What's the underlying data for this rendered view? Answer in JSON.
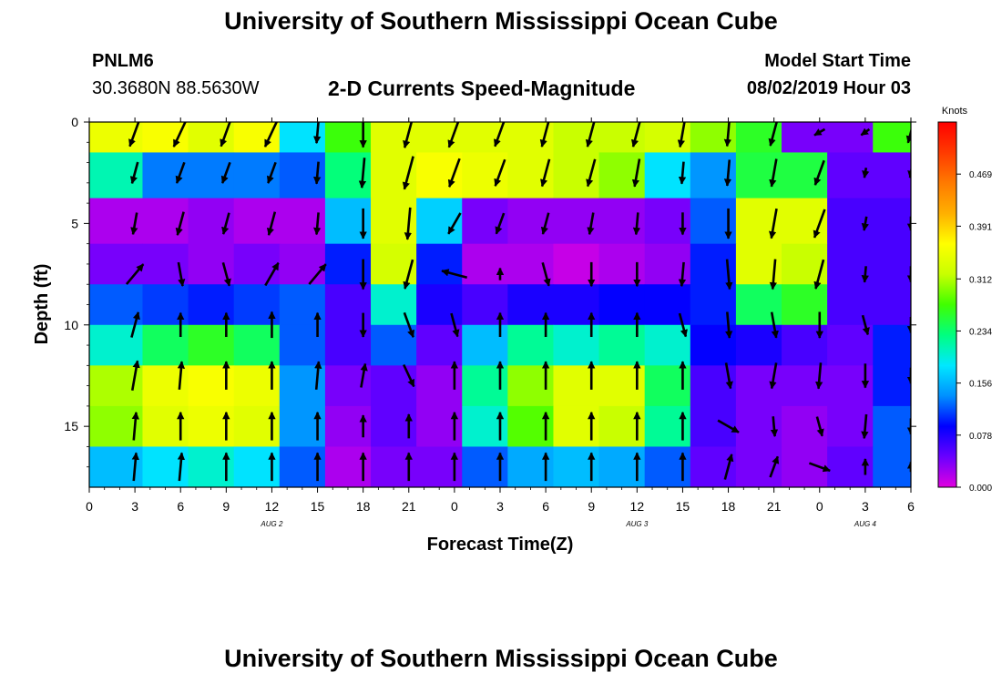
{
  "header": {
    "title": "University of Southern Mississippi Ocean Cube",
    "station": "PNLM6",
    "coordinates": "30.3680N 88.5630W",
    "subtitle": "2-D Currents Speed-Magnitude",
    "model_start_label": "Model Start Time",
    "model_start_value": "08/02/2019 Hour 03"
  },
  "footer": {
    "title": "University of Southern Mississippi Ocean Cube"
  },
  "chart_data": {
    "type": "heatmap",
    "xlabel": "Forecast Time(Z)",
    "ylabel": "Depth (ft)",
    "x_range_hours": [
      0,
      54
    ],
    "y_range_ft": [
      0,
      18
    ],
    "y_inverted": true,
    "x_ticks": [
      {
        "h": 0,
        "label": "0"
      },
      {
        "h": 3,
        "label": "3"
      },
      {
        "h": 6,
        "label": "6"
      },
      {
        "h": 9,
        "label": "9"
      },
      {
        "h": 12,
        "label": "12"
      },
      {
        "h": 15,
        "label": "15"
      },
      {
        "h": 18,
        "label": "18"
      },
      {
        "h": 21,
        "label": "21"
      },
      {
        "h": 24,
        "label": "0"
      },
      {
        "h": 27,
        "label": "3"
      },
      {
        "h": 30,
        "label": "6"
      },
      {
        "h": 33,
        "label": "9"
      },
      {
        "h": 36,
        "label": "12"
      },
      {
        "h": 39,
        "label": "15"
      },
      {
        "h": 42,
        "label": "18"
      },
      {
        "h": 45,
        "label": "21"
      },
      {
        "h": 48,
        "label": "0"
      },
      {
        "h": 51,
        "label": "3"
      },
      {
        "h": 54,
        "label": "6"
      }
    ],
    "y_ticks": [
      {
        "v": 0,
        "label": "0"
      },
      {
        "v": 5,
        "label": "5"
      },
      {
        "v": 10,
        "label": "10"
      },
      {
        "v": 15,
        "label": "15"
      }
    ],
    "date_labels": [
      {
        "h": 12,
        "label": "AUG 2"
      },
      {
        "h": 36,
        "label": "AUG 3"
      },
      {
        "h": 51,
        "label": "AUG 4"
      }
    ],
    "colorbar": {
      "unit": "Knots",
      "min": 0.0,
      "max": 0.547,
      "ticks": [
        {
          "v": 0.0,
          "label": "0.000"
        },
        {
          "v": 0.078,
          "label": "0.078"
        },
        {
          "v": 0.156,
          "label": "0.156"
        },
        {
          "v": 0.234,
          "label": "0.234"
        },
        {
          "v": 0.312,
          "label": "0.312"
        },
        {
          "v": 0.391,
          "label": "0.391"
        },
        {
          "v": 0.469,
          "label": "0.469"
        }
      ],
      "colors": [
        "#e000e0",
        "#6a00ff",
        "#0000ff",
        "#0090ff",
        "#00e8ff",
        "#00ff80",
        "#40ff00",
        "#c8ff00",
        "#ffff00",
        "#ffb000",
        "#ff7a00",
        "#ff3a00",
        "#ff0000"
      ]
    },
    "time_hours": [
      2,
      5,
      8,
      11,
      14,
      17,
      20,
      23,
      26,
      29,
      32,
      35,
      38,
      41,
      44,
      47,
      50,
      53
    ],
    "depth_ft": [
      0.5,
      2.5,
      5,
      7,
      9,
      11,
      13,
      15,
      17
    ],
    "speed_knots": [
      [
        0.35,
        0.36,
        0.34,
        0.36,
        0.18,
        0.27,
        0.34,
        0.34,
        0.34,
        0.34,
        0.32,
        0.32,
        0.33,
        0.3,
        0.26,
        0.04,
        0.04,
        0.27
      ],
      [
        0.21,
        0.13,
        0.13,
        0.13,
        0.12,
        0.23,
        0.34,
        0.36,
        0.35,
        0.34,
        0.32,
        0.3,
        0.18,
        0.14,
        0.25,
        0.25,
        0.05,
        0.05
      ],
      [
        0.02,
        0.02,
        0.03,
        0.02,
        0.02,
        0.16,
        0.34,
        0.17,
        0.04,
        0.03,
        0.03,
        0.03,
        0.04,
        0.12,
        0.34,
        0.34,
        0.06,
        0.06
      ],
      [
        0.04,
        0.04,
        0.03,
        0.04,
        0.03,
        0.1,
        0.33,
        0.1,
        0.02,
        0.02,
        0.01,
        0.02,
        0.03,
        0.1,
        0.34,
        0.32,
        0.06,
        0.06
      ],
      [
        0.12,
        0.11,
        0.1,
        0.11,
        0.12,
        0.06,
        0.2,
        0.08,
        0.06,
        0.08,
        0.08,
        0.09,
        0.09,
        0.1,
        0.24,
        0.26,
        0.06,
        0.06
      ],
      [
        0.2,
        0.24,
        0.26,
        0.24,
        0.12,
        0.06,
        0.12,
        0.05,
        0.16,
        0.22,
        0.2,
        0.22,
        0.2,
        0.09,
        0.08,
        0.06,
        0.05,
        0.1
      ],
      [
        0.31,
        0.35,
        0.36,
        0.35,
        0.14,
        0.04,
        0.05,
        0.03,
        0.22,
        0.3,
        0.34,
        0.34,
        0.24,
        0.06,
        0.04,
        0.04,
        0.04,
        0.1
      ],
      [
        0.3,
        0.34,
        0.35,
        0.34,
        0.14,
        0.03,
        0.05,
        0.03,
        0.2,
        0.28,
        0.34,
        0.32,
        0.22,
        0.06,
        0.04,
        0.03,
        0.04,
        0.12
      ],
      [
        0.16,
        0.18,
        0.2,
        0.18,
        0.12,
        0.02,
        0.04,
        0.04,
        0.12,
        0.15,
        0.16,
        0.15,
        0.12,
        0.05,
        0.04,
        0.03,
        0.05,
        0.12
      ]
    ],
    "vector_times_hours": [
      3,
      6,
      9,
      12,
      15,
      18,
      21,
      24,
      27,
      30,
      33,
      36,
      39,
      42,
      45,
      48,
      51,
      54
    ],
    "vector_depths_ft": [
      0.5,
      2.5,
      5,
      7.5,
      10,
      12.5,
      15,
      17
    ],
    "vector_direction_deg": [
      [
        200,
        205,
        200,
        205,
        185,
        180,
        195,
        200,
        200,
        195,
        195,
        195,
        190,
        185,
        195,
        240,
        235,
        195
      ],
      [
        195,
        200,
        200,
        200,
        185,
        185,
        195,
        200,
        200,
        195,
        195,
        190,
        185,
        185,
        190,
        200,
        190,
        190
      ],
      [
        190,
        195,
        195,
        195,
        185,
        180,
        185,
        210,
        200,
        195,
        190,
        185,
        180,
        180,
        190,
        200,
        190,
        180
      ],
      [
        40,
        170,
        165,
        30,
        40,
        180,
        195,
        285,
        0,
        165,
        180,
        180,
        185,
        175,
        185,
        195,
        185,
        180
      ],
      [
        15,
        0,
        0,
        0,
        0,
        180,
        160,
        165,
        0,
        0,
        0,
        0,
        165,
        175,
        170,
        180,
        165,
        180
      ],
      [
        10,
        5,
        0,
        0,
        5,
        10,
        155,
        0,
        0,
        0,
        0,
        0,
        0,
        170,
        190,
        185,
        180,
        180
      ],
      [
        5,
        0,
        0,
        0,
        0,
        0,
        0,
        0,
        0,
        0,
        0,
        0,
        0,
        120,
        175,
        165,
        185,
        180
      ],
      [
        5,
        5,
        0,
        0,
        0,
        0,
        0,
        0,
        0,
        0,
        0,
        0,
        0,
        15,
        20,
        110,
        0,
        0
      ]
    ],
    "vector_magnitude_knots": [
      [
        0.3,
        0.32,
        0.3,
        0.32,
        0.22,
        0.3,
        0.32,
        0.32,
        0.3,
        0.3,
        0.3,
        0.3,
        0.3,
        0.28,
        0.28,
        0.12,
        0.1,
        0.22
      ],
      [
        0.22,
        0.22,
        0.22,
        0.22,
        0.22,
        0.3,
        0.34,
        0.3,
        0.28,
        0.28,
        0.28,
        0.28,
        0.22,
        0.26,
        0.28,
        0.26,
        0.1,
        0.1
      ],
      [
        0.22,
        0.24,
        0.22,
        0.24,
        0.22,
        0.3,
        0.32,
        0.24,
        0.22,
        0.22,
        0.22,
        0.22,
        0.22,
        0.3,
        0.3,
        0.3,
        0.14,
        0.14
      ],
      [
        0.26,
        0.24,
        0.24,
        0.26,
        0.26,
        0.3,
        0.3,
        0.26,
        0.12,
        0.24,
        0.24,
        0.24,
        0.24,
        0.3,
        0.3,
        0.3,
        0.16,
        0.16
      ],
      [
        0.26,
        0.24,
        0.24,
        0.26,
        0.24,
        0.24,
        0.26,
        0.24,
        0.24,
        0.24,
        0.24,
        0.24,
        0.24,
        0.26,
        0.26,
        0.26,
        0.2,
        0.16
      ],
      [
        0.3,
        0.28,
        0.28,
        0.28,
        0.28,
        0.24,
        0.24,
        0.28,
        0.28,
        0.28,
        0.28,
        0.28,
        0.28,
        0.26,
        0.26,
        0.26,
        0.24,
        0.16
      ],
      [
        0.28,
        0.28,
        0.28,
        0.28,
        0.28,
        0.22,
        0.24,
        0.28,
        0.28,
        0.28,
        0.28,
        0.28,
        0.28,
        0.24,
        0.2,
        0.2,
        0.24,
        0.16
      ],
      [
        0.28,
        0.28,
        0.28,
        0.28,
        0.28,
        0.28,
        0.28,
        0.28,
        0.28,
        0.28,
        0.28,
        0.28,
        0.28,
        0.26,
        0.22,
        0.22,
        0.16,
        0.1
      ]
    ]
  }
}
